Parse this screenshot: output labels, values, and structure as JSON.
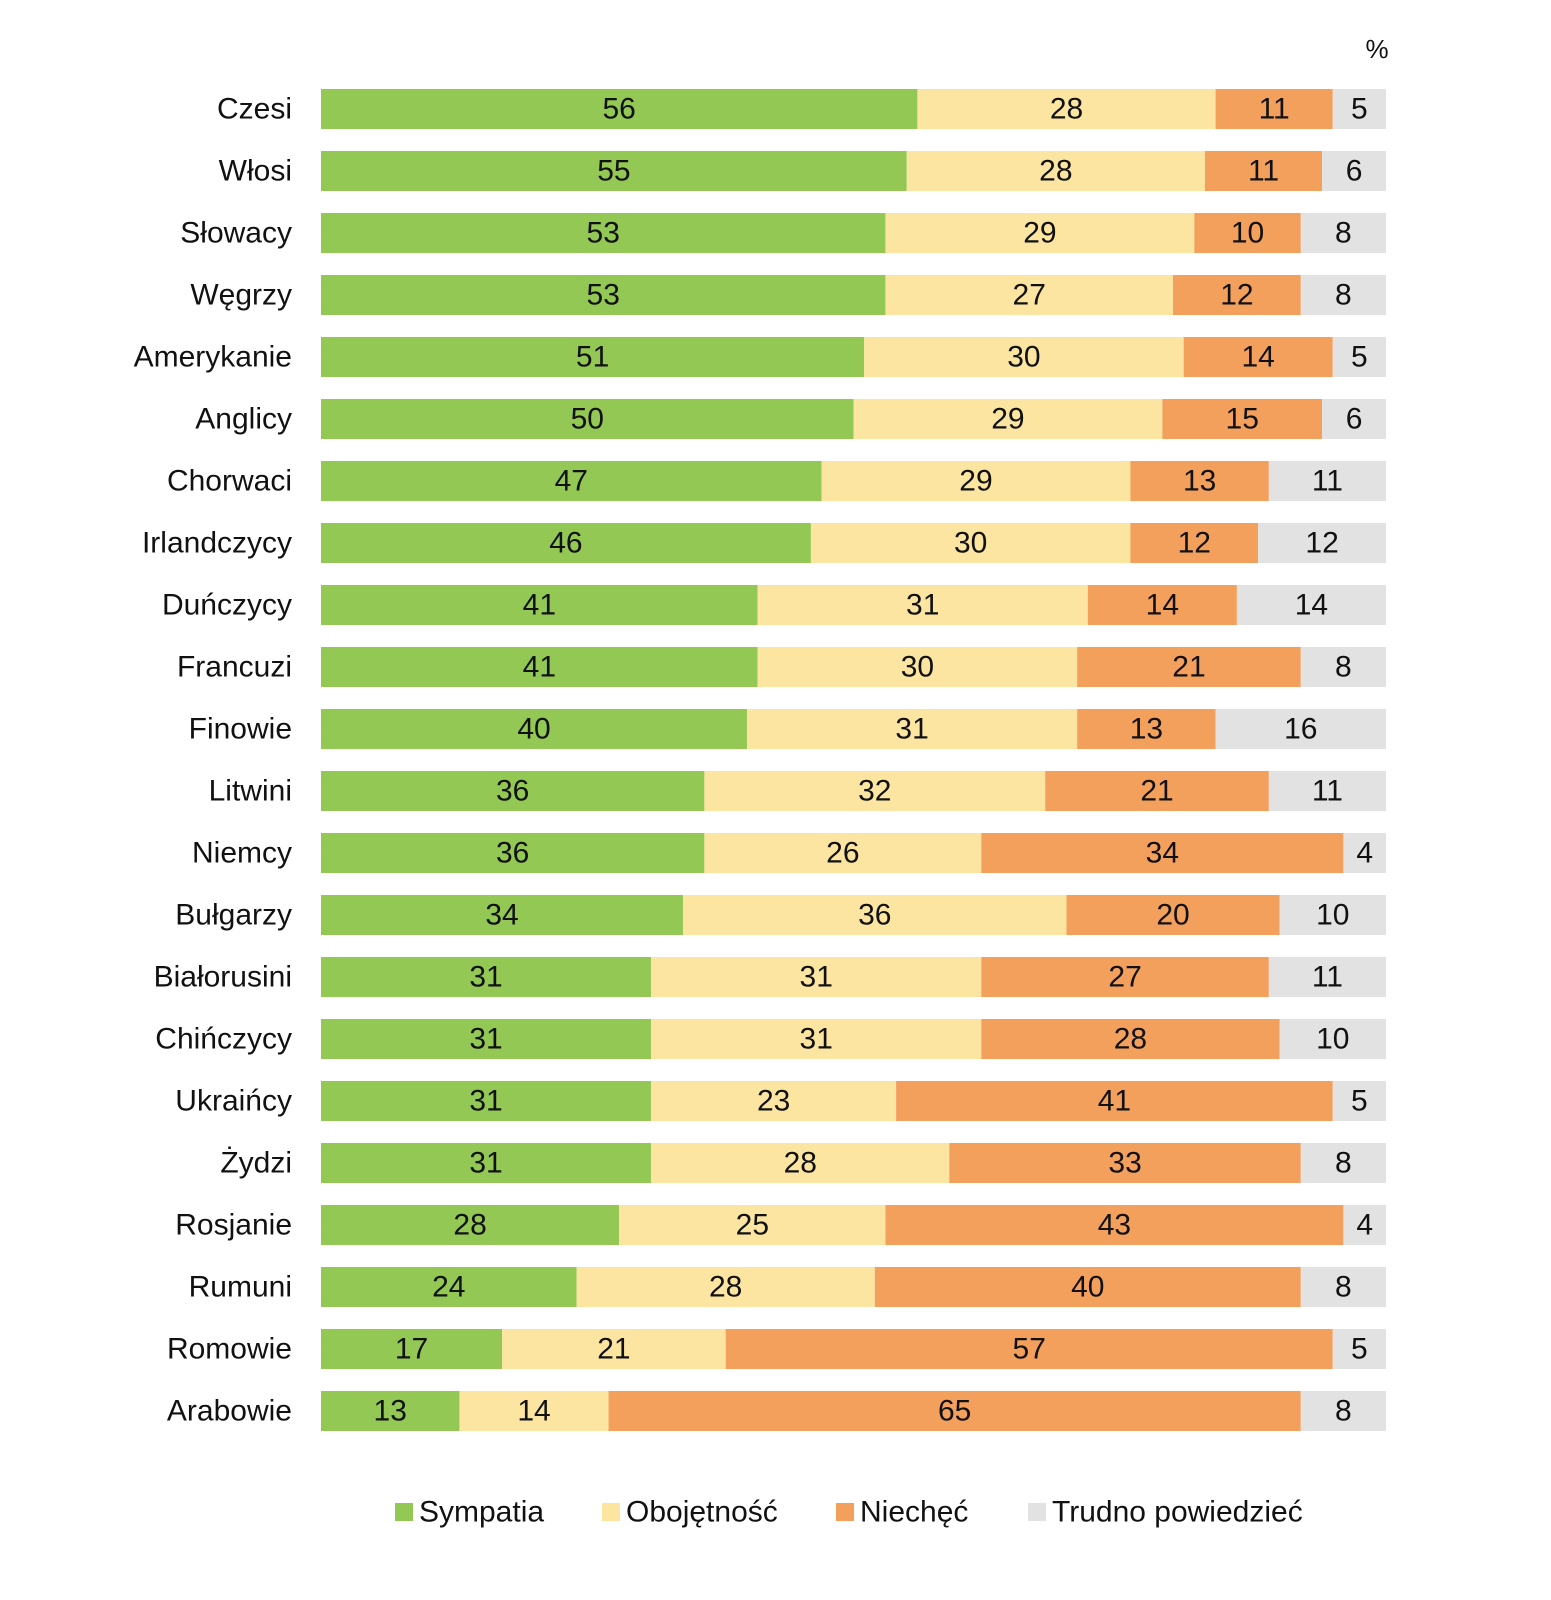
{
  "chart_data": {
    "type": "bar",
    "orientation": "horizontal",
    "stacked": true,
    "title": "",
    "unit_label": "%",
    "xlabel": "",
    "ylabel": "",
    "xlim": [
      0,
      100
    ],
    "grid": false,
    "legend_position": "bottom",
    "categories": [
      "Czesi",
      "Włosi",
      "Słowacy",
      "Węgrzy",
      "Amerykanie",
      "Anglicy",
      "Chorwaci",
      "Irlandczycy",
      "Duńczycy",
      "Francuzi",
      "Finowie",
      "Litwini",
      "Niemcy",
      "Bułgarzy",
      "Białorusini",
      "Chińczycy",
      "Ukraińcy",
      "Żydzi",
      "Rosjanie",
      "Rumuni",
      "Romowie",
      "Arabowie"
    ],
    "series": [
      {
        "name": "Sympatia",
        "color": "#92c853",
        "values": [
          56,
          55,
          53,
          53,
          51,
          50,
          47,
          46,
          41,
          41,
          40,
          36,
          36,
          34,
          31,
          31,
          31,
          31,
          28,
          24,
          17,
          13
        ]
      },
      {
        "name": "Obojętność",
        "color": "#fce5a0",
        "values": [
          28,
          28,
          29,
          27,
          30,
          29,
          29,
          30,
          31,
          30,
          31,
          32,
          26,
          36,
          31,
          31,
          23,
          28,
          25,
          28,
          21,
          14
        ]
      },
      {
        "name": "Niechęć",
        "color": "#f3a05d",
        "values": [
          11,
          11,
          10,
          12,
          14,
          15,
          13,
          12,
          14,
          21,
          13,
          21,
          34,
          20,
          27,
          28,
          41,
          33,
          43,
          40,
          57,
          65
        ]
      },
      {
        "name": "Trudno powiedzieć",
        "color": "#e2e2e2",
        "values": [
          5,
          6,
          8,
          8,
          5,
          6,
          11,
          12,
          14,
          8,
          16,
          11,
          4,
          10,
          11,
          10,
          5,
          8,
          4,
          8,
          5,
          8
        ]
      }
    ]
  }
}
